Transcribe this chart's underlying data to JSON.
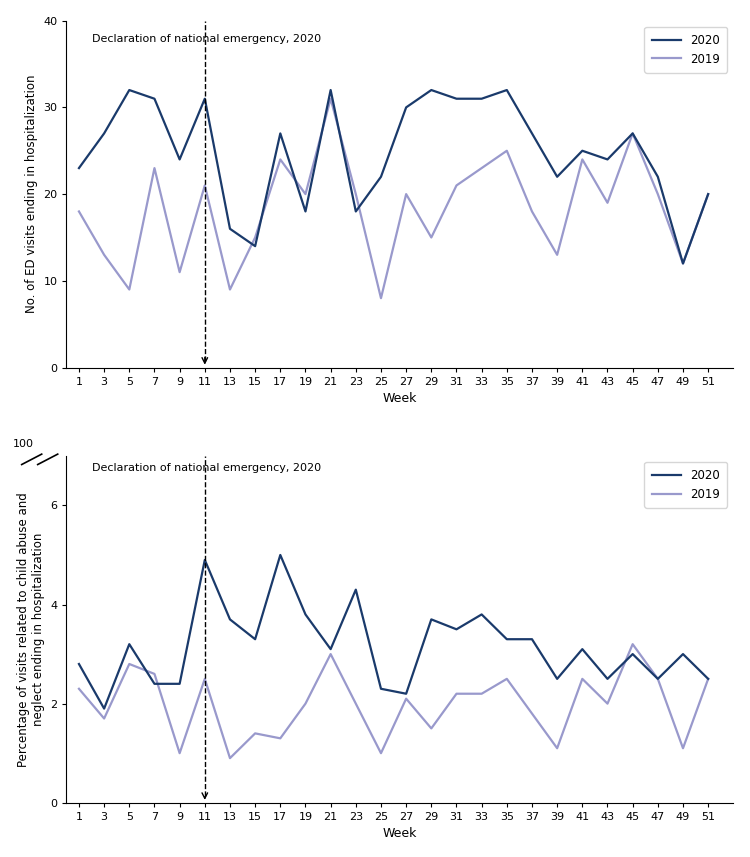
{
  "weeks": [
    1,
    3,
    5,
    7,
    9,
    11,
    13,
    15,
    17,
    19,
    21,
    23,
    25,
    27,
    29,
    31,
    33,
    35,
    37,
    39,
    41,
    43,
    45,
    47,
    49,
    51
  ],
  "panel1_2020": [
    23,
    27,
    32,
    31,
    24,
    31,
    16,
    14,
    27,
    18,
    32,
    18,
    22,
    30,
    32,
    31,
    31,
    32,
    27,
    22,
    25,
    24,
    27,
    22,
    12,
    20
  ],
  "panel1_2019": [
    18,
    13,
    9,
    23,
    11,
    21,
    9,
    15,
    24,
    20,
    31,
    20,
    8,
    20,
    15,
    21,
    23,
    25,
    18,
    13,
    24,
    19,
    27,
    20,
    12,
    20
  ],
  "panel2_2020": [
    2.8,
    1.9,
    3.2,
    2.4,
    2.4,
    4.9,
    3.7,
    3.3,
    5.0,
    3.8,
    3.1,
    4.3,
    2.3,
    2.2,
    3.7,
    3.5,
    3.8,
    3.3,
    3.3,
    2.5,
    3.1,
    2.5,
    3.0,
    2.5,
    3.0,
    2.5
  ],
  "panel2_2019": [
    2.3,
    1.7,
    2.8,
    2.6,
    1.0,
    2.5,
    0.9,
    1.4,
    1.3,
    2.0,
    3.0,
    2.0,
    1.0,
    2.1,
    1.5,
    2.2,
    2.2,
    2.5,
    1.8,
    1.1,
    2.5,
    2.0,
    3.2,
    2.5,
    1.1,
    2.5
  ],
  "color_2020": "#1a3a6b",
  "color_2019": "#9999cc",
  "dashed_line_week": 11,
  "annotation_text": "Declaration of national emergency, 2020",
  "panel1_ylabel": "No. of ED visits ending in hospitalization",
  "panel2_ylabel": "Percentage of visits related to child abuse and\nneglect ending in hospitalization",
  "xlabel": "Week",
  "panel1_ylim": [
    0,
    40
  ],
  "panel1_yticks": [
    0,
    10,
    20,
    30,
    40
  ],
  "panel2_ylim": [
    0,
    7
  ],
  "panel2_yticks": [
    0,
    2,
    4,
    6
  ],
  "panel2_ytick_labels": [
    "0",
    "2",
    "4",
    "6"
  ],
  "panel2_top_label": "100",
  "xtick_labels": [
    "1",
    "3",
    "5",
    "7",
    "9",
    "11",
    "13",
    "15",
    "17",
    "19",
    "21",
    "23",
    "25",
    "27",
    "29",
    "31",
    "33",
    "35",
    "37",
    "39",
    "41",
    "43",
    "45",
    "47",
    "49",
    "51"
  ]
}
